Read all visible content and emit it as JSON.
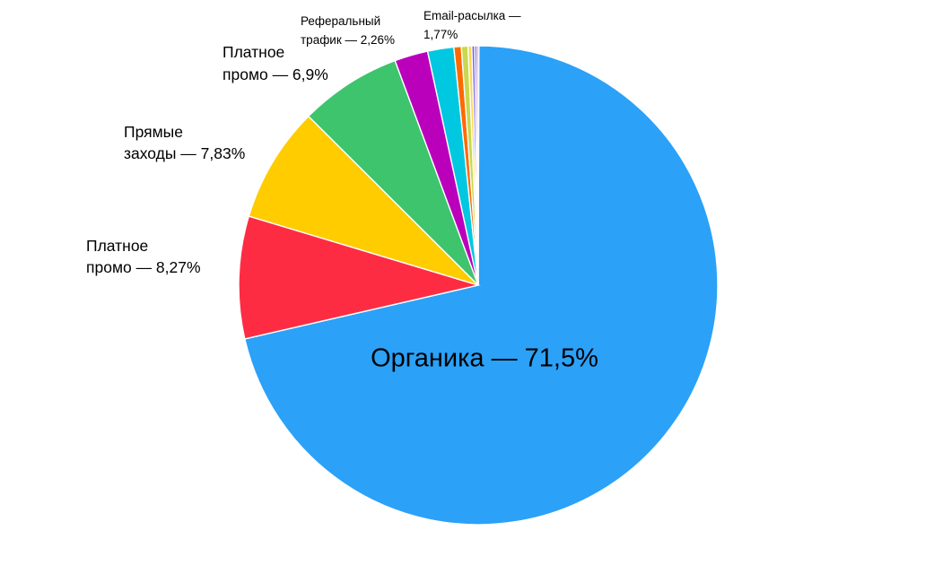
{
  "chart_data": {
    "type": "pie",
    "title": "",
    "slices": [
      {
        "label": "Органика — 71,5%",
        "value": 71.5,
        "color": "#2ba1f8"
      },
      {
        "label": "Платное промо — 8,27%",
        "value": 8.27,
        "color": "#fe2c42"
      },
      {
        "label": "Прямые заходы — 7,83%",
        "value": 7.83,
        "color": "#ffcc00"
      },
      {
        "label": "Платное промо — 6,9%",
        "value": 6.9,
        "color": "#3ec46d"
      },
      {
        "label": "Реферальный трафик — 2,26%",
        "value": 2.26,
        "color": "#bb00bb"
      },
      {
        "label": "Email-расылка — 1,77%",
        "value": 1.77,
        "color": "#00c8e0"
      },
      {
        "label": "",
        "value": 0.5,
        "color": "#ff6a00"
      },
      {
        "label": "",
        "value": 0.45,
        "color": "#c8d850"
      },
      {
        "label": "",
        "value": 0.25,
        "color": "#ffd84a"
      },
      {
        "label": "",
        "value": 0.2,
        "color": "#7b68ee"
      },
      {
        "label": "",
        "value": 0.15,
        "color": "#9b59b6"
      },
      {
        "label": "",
        "value": 0.12,
        "color": "#8e8e93"
      }
    ]
  }
}
